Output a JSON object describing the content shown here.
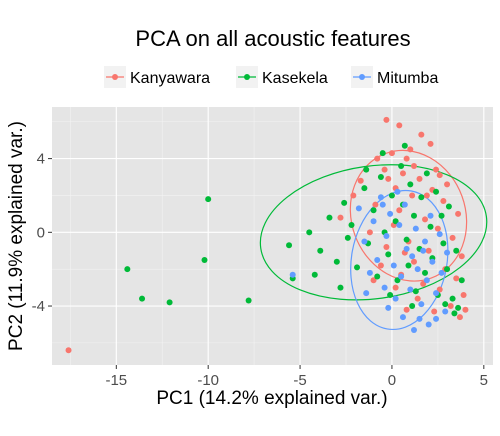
{
  "chart_data": {
    "type": "scatter",
    "title": "PCA on all acoustic features",
    "xlabel": "PC1 (14.2% explained var.)",
    "ylabel": "PC2 (11.9% explained var.)",
    "xlim": [
      -18.5,
      5.5
    ],
    "ylim": [
      -7.2,
      6.8
    ],
    "x_ticks": [
      -15,
      -10,
      -5,
      0,
      5
    ],
    "y_ticks": [
      -4,
      0,
      4
    ],
    "x_tick_labels": [
      "-15",
      "-10",
      "-5",
      "0",
      "5"
    ],
    "y_tick_labels": [
      "-4",
      "0",
      "4"
    ],
    "grid": true,
    "panel_background": "#e5e5e5",
    "legend_position": "top",
    "series": [
      {
        "name": "Kanyawara",
        "color": "#f8766d",
        "ellipse": {
          "cx": 0.9,
          "cy": 0.9,
          "rx": 3.1,
          "ry": 3.6,
          "angle_deg": -20
        },
        "points": [
          [
            -17.6,
            -6.4
          ],
          [
            -0.3,
            6.1
          ],
          [
            0.4,
            5.8
          ],
          [
            1.6,
            5.3
          ],
          [
            2.1,
            4.8
          ],
          [
            1.0,
            4.5
          ],
          [
            0.0,
            4.3
          ],
          [
            0.8,
            4.0
          ],
          [
            -0.8,
            4.0
          ],
          [
            1.2,
            3.6
          ],
          [
            2.4,
            3.4
          ],
          [
            -0.4,
            3.4
          ],
          [
            0.6,
            3.2
          ],
          [
            1.5,
            2.9
          ],
          [
            -1.7,
            2.8
          ],
          [
            3.0,
            2.6
          ],
          [
            0.2,
            2.4
          ],
          [
            2.2,
            2.3
          ],
          [
            -2.1,
            2.0
          ],
          [
            1.1,
            2.0
          ],
          [
            2.8,
            1.7
          ],
          [
            -0.9,
            1.5
          ],
          [
            0.4,
            1.2
          ],
          [
            3.6,
            1.0
          ],
          [
            -2.8,
            0.8
          ],
          [
            1.8,
            0.7
          ],
          [
            0.1,
            0.4
          ],
          [
            2.5,
            0.2
          ],
          [
            -1.2,
            0.0
          ],
          [
            3.3,
            -0.3
          ],
          [
            0.9,
            -0.5
          ],
          [
            -0.3,
            -0.8
          ],
          [
            2.0,
            -1.0
          ],
          [
            3.8,
            -1.3
          ],
          [
            1.2,
            -1.6
          ],
          [
            -0.6,
            -1.8
          ],
          [
            2.9,
            -2.0
          ],
          [
            0.5,
            -2.3
          ],
          [
            3.5,
            -2.5
          ],
          [
            1.7,
            -2.8
          ],
          [
            -1.0,
            -2.6
          ],
          [
            2.6,
            -3.1
          ],
          [
            0.2,
            -3.0
          ],
          [
            3.9,
            -3.4
          ],
          [
            1.4,
            -3.6
          ],
          [
            3.2,
            -4.0
          ],
          [
            2.3,
            -4.3
          ],
          [
            0.8,
            -4.2
          ],
          [
            3.7,
            -4.6
          ],
          [
            4.0,
            -4.2
          ],
          [
            2.6,
            3.1
          ],
          [
            1.9,
            2.0
          ],
          [
            -0.2,
            2.9
          ],
          [
            0.7,
            -1.1
          ]
        ]
      },
      {
        "name": "Kasekela",
        "color": "#00ba38",
        "ellipse": {
          "cx": -1.0,
          "cy": 0.0,
          "rx": 6.2,
          "ry": 3.6,
          "angle_deg": -8
        },
        "points": [
          [
            -10.0,
            1.8
          ],
          [
            -14.4,
            -2.0
          ],
          [
            -13.6,
            -3.6
          ],
          [
            -12.1,
            -3.8
          ],
          [
            -10.2,
            -1.5
          ],
          [
            -7.8,
            -3.7
          ],
          [
            -5.4,
            -2.5
          ],
          [
            -5.6,
            -0.7
          ],
          [
            -4.5,
            0.0
          ],
          [
            -3.9,
            -1.0
          ],
          [
            -4.2,
            -2.3
          ],
          [
            -3.4,
            0.8
          ],
          [
            -3.0,
            -1.6
          ],
          [
            -2.6,
            1.6
          ],
          [
            -2.8,
            -3.0
          ],
          [
            -2.2,
            0.4
          ],
          [
            -1.9,
            -1.9
          ],
          [
            -1.5,
            2.4
          ],
          [
            -1.3,
            -0.6
          ],
          [
            -1.0,
            1.2
          ],
          [
            -0.8,
            -2.4
          ],
          [
            -0.6,
            3.0
          ],
          [
            -0.4,
            0.0
          ],
          [
            -0.2,
            -1.2
          ],
          [
            0.0,
            2.0
          ],
          [
            0.2,
            0.6
          ],
          [
            0.3,
            -2.6
          ],
          [
            0.5,
            3.6
          ],
          [
            0.6,
            1.5
          ],
          [
            0.8,
            -0.4
          ],
          [
            0.9,
            -1.8
          ],
          [
            1.0,
            2.6
          ],
          [
            1.2,
            0.9
          ],
          [
            1.3,
            -3.2
          ],
          [
            1.5,
            -0.9
          ],
          [
            1.6,
            1.9
          ],
          [
            1.8,
            -2.2
          ],
          [
            1.9,
            3.2
          ],
          [
            2.1,
            0.3
          ],
          [
            2.2,
            -1.4
          ],
          [
            2.4,
            2.2
          ],
          [
            2.5,
            -3.4
          ],
          [
            2.7,
            0.9
          ],
          [
            2.8,
            -0.6
          ],
          [
            3.0,
            -2.0
          ],
          [
            3.1,
            1.4
          ],
          [
            3.3,
            -3.6
          ],
          [
            3.5,
            -1.0
          ],
          [
            3.6,
            -4.1
          ],
          [
            3.8,
            -2.6
          ],
          [
            3.4,
            -4.4
          ],
          [
            2.9,
            -3.9
          ],
          [
            -0.5,
            4.3
          ],
          [
            0.7,
            4.7
          ],
          [
            -1.4,
            3.4
          ],
          [
            1.1,
            -4.0
          ],
          [
            -0.1,
            -3.4
          ],
          [
            -2.4,
            -0.3
          ]
        ]
      },
      {
        "name": "Mitumba",
        "color": "#619cff",
        "ellipse": {
          "cx": 0.4,
          "cy": -1.5,
          "rx": 2.6,
          "ry": 3.8,
          "angle_deg": 10
        },
        "points": [
          [
            -5.4,
            -2.3
          ],
          [
            -1.8,
            1.3
          ],
          [
            -1.5,
            -0.5
          ],
          [
            -1.2,
            -2.2
          ],
          [
            -1.0,
            0.6
          ],
          [
            -0.8,
            -1.5
          ],
          [
            -0.6,
            1.9
          ],
          [
            -0.4,
            -3.0
          ],
          [
            -0.3,
            -0.2
          ],
          [
            -0.1,
            1.0
          ],
          [
            0.1,
            -1.8
          ],
          [
            0.2,
            -3.6
          ],
          [
            0.4,
            0.4
          ],
          [
            0.5,
            -2.4
          ],
          [
            0.7,
            1.5
          ],
          [
            0.8,
            -0.9
          ],
          [
            1.0,
            -3.1
          ],
          [
            1.1,
            -1.3
          ],
          [
            1.3,
            0.2
          ],
          [
            1.4,
            -2.0
          ],
          [
            1.6,
            -3.9
          ],
          [
            1.8,
            -0.5
          ],
          [
            1.9,
            -2.6
          ],
          [
            2.1,
            0.9
          ],
          [
            2.2,
            -1.6
          ],
          [
            2.4,
            -3.3
          ],
          [
            2.6,
            -0.1
          ],
          [
            2.7,
            -2.2
          ],
          [
            2.9,
            -4.3
          ],
          [
            3.0,
            -1.1
          ],
          [
            1.2,
            -5.3
          ],
          [
            0.6,
            -4.6
          ],
          [
            -0.2,
            -4.1
          ],
          [
            1.5,
            -4.7
          ],
          [
            2.0,
            -5.0
          ],
          [
            -0.5,
            1.5
          ],
          [
            0.3,
            2.2
          ],
          [
            2.4,
            -4.7
          ],
          [
            1.7,
            -1.0
          ],
          [
            -1.4,
            -3.3
          ]
        ]
      }
    ]
  }
}
